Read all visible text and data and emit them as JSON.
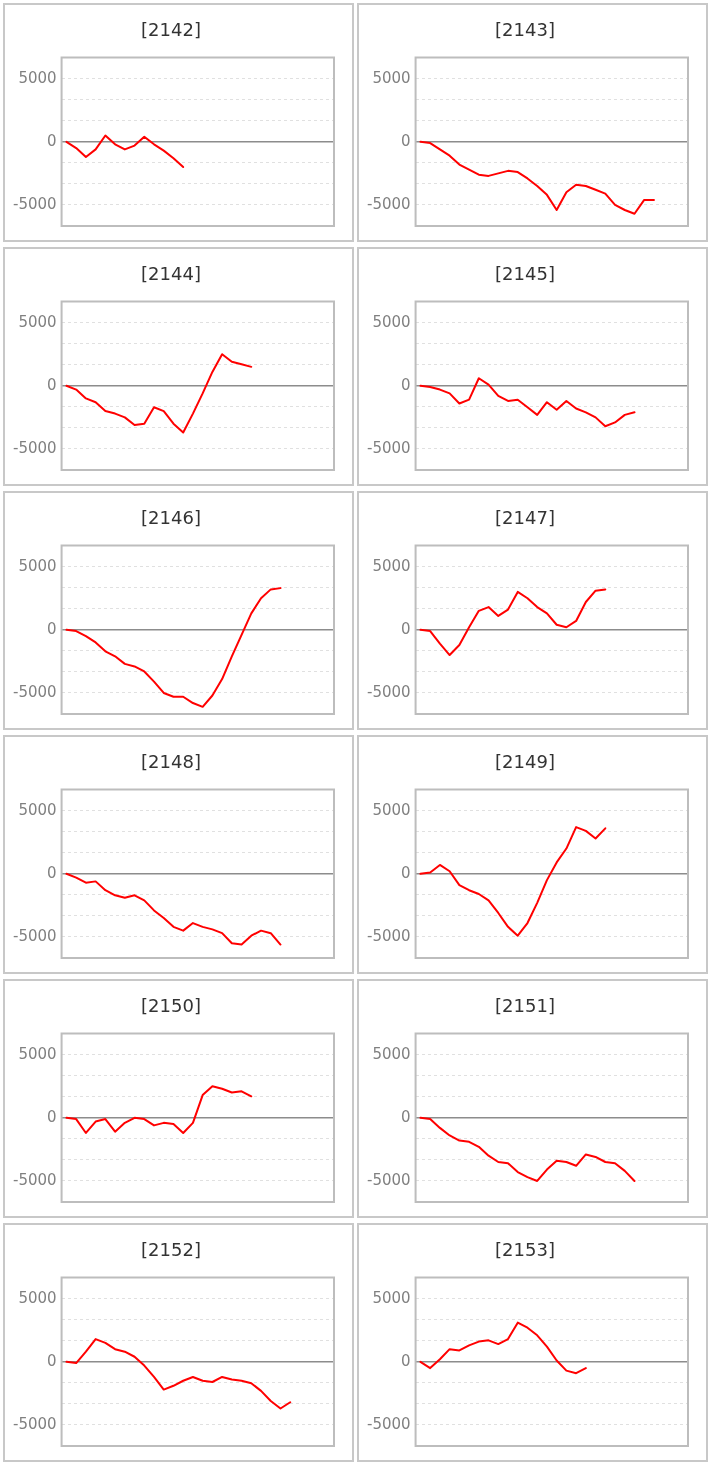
{
  "chart_data": [
    {
      "type": "line",
      "title": "[2142]",
      "categories": [
        null,
        null,
        null,
        null,
        null,
        null,
        null,
        null,
        null,
        null,
        null,
        null,
        null,
        null,
        null,
        null,
        null,
        null,
        null,
        null,
        null,
        null,
        null,
        null,
        null,
        null,
        null,
        null
      ],
      "values": [
        0,
        -500,
        -1200,
        -600,
        500,
        -200,
        -600,
        -300,
        400,
        -200,
        -700,
        -1300,
        -2000,
        null,
        null,
        null,
        null,
        null,
        null,
        null,
        null,
        null,
        null,
        null,
        null,
        null,
        null,
        null
      ],
      "color": "#ff0000",
      "ylim": [
        -6666.67,
        6666.67
      ],
      "yticks": [
        -5000,
        {
          "value": -3333.33,
          "label": null
        },
        {
          "value": -1666.67,
          "label": null
        },
        0,
        {
          "value": 1666.67,
          "label": null
        },
        {
          "value": 3333.33,
          "label": null
        },
        5000
      ],
      "grid": "y",
      "tick_labels": "y",
      "marker": "none",
      "line_style": "solid"
    },
    {
      "type": "line",
      "title": "[2143]",
      "categories": [
        null,
        null,
        null,
        null,
        null,
        null,
        null,
        null,
        null,
        null,
        null,
        null,
        null,
        null,
        null,
        null,
        null,
        null,
        null,
        null,
        null,
        null,
        null,
        null,
        null,
        null,
        null,
        null
      ],
      "values": [
        0,
        -100,
        -600,
        -1100,
        -1800,
        -2200,
        -2600,
        -2700,
        -2500,
        -2300,
        -2400,
        -2900,
        -3500,
        -4200,
        -5400,
        -4000,
        -3400,
        -3500,
        -3800,
        -4100,
        -5000,
        -5400,
        -5700,
        -4600,
        -4600,
        null,
        null,
        null
      ],
      "color": "#ff0000",
      "ylim": [
        -6666.67,
        6666.67
      ],
      "yticks": [
        -5000,
        {
          "value": -3333.33,
          "label": null
        },
        {
          "value": -1666.67,
          "label": null
        },
        0,
        {
          "value": 1666.67,
          "label": null
        },
        {
          "value": 3333.33,
          "label": null
        },
        5000
      ],
      "grid": "y",
      "tick_labels": "y",
      "marker": "none",
      "line_style": "solid"
    },
    {
      "type": "line",
      "title": "[2144]",
      "categories": [
        null,
        null,
        null,
        null,
        null,
        null,
        null,
        null,
        null,
        null,
        null,
        null,
        null,
        null,
        null,
        null,
        null,
        null,
        null,
        null,
        null,
        null,
        null,
        null,
        null,
        null,
        null,
        null
      ],
      "values": [
        0,
        -300,
        -1000,
        -1300,
        -2000,
        -2200,
        -2500,
        -3100,
        -3000,
        -1700,
        -2000,
        -3000,
        -3700,
        -2200,
        -600,
        1100,
        2500,
        1900,
        1700,
        1500,
        null,
        null,
        null,
        null,
        null,
        null,
        null,
        null
      ],
      "color": "#ff0000",
      "ylim": [
        -6666.67,
        6666.67
      ],
      "yticks": [
        -5000,
        {
          "value": -3333.33,
          "label": null
        },
        {
          "value": -1666.67,
          "label": null
        },
        0,
        {
          "value": 1666.67,
          "label": null
        },
        {
          "value": 3333.33,
          "label": null
        },
        5000
      ],
      "grid": "y",
      "tick_labels": "y",
      "marker": "none",
      "line_style": "solid"
    },
    {
      "type": "line",
      "title": "[2145]",
      "categories": [
        null,
        null,
        null,
        null,
        null,
        null,
        null,
        null,
        null,
        null,
        null,
        null,
        null,
        null,
        null,
        null,
        null,
        null,
        null,
        null,
        null,
        null,
        null,
        null,
        null,
        null,
        null,
        null
      ],
      "values": [
        0,
        -100,
        -300,
        -600,
        -1400,
        -1100,
        600,
        100,
        -800,
        -1200,
        -1100,
        -1700,
        -2300,
        -1300,
        -1900,
        -1200,
        -1800,
        -2100,
        -2500,
        -3200,
        -2900,
        -2300,
        -2100,
        null,
        null,
        null,
        null,
        null
      ],
      "color": "#ff0000",
      "ylim": [
        -6666.67,
        6666.67
      ],
      "yticks": [
        -5000,
        {
          "value": -3333.33,
          "label": null
        },
        {
          "value": -1666.67,
          "label": null
        },
        0,
        {
          "value": 1666.67,
          "label": null
        },
        {
          "value": 3333.33,
          "label": null
        },
        5000
      ],
      "grid": "y",
      "tick_labels": "y",
      "marker": "none",
      "line_style": "solid"
    },
    {
      "type": "line",
      "title": "[2146]",
      "categories": [
        null,
        null,
        null,
        null,
        null,
        null,
        null,
        null,
        null,
        null,
        null,
        null,
        null,
        null,
        null,
        null,
        null,
        null,
        null,
        null,
        null,
        null,
        null,
        null,
        null,
        null,
        null,
        null
      ],
      "values": [
        0,
        -100,
        -500,
        -1000,
        -1700,
        -2100,
        -2700,
        -2900,
        -3300,
        -4100,
        -5000,
        -5300,
        -5300,
        -5800,
        -6100,
        -5200,
        -3900,
        -2100,
        -400,
        1300,
        2500,
        3200,
        3300,
        null,
        null,
        null,
        null,
        null
      ],
      "color": "#ff0000",
      "ylim": [
        -6666.67,
        6666.67
      ],
      "yticks": [
        -5000,
        {
          "value": -3333.33,
          "label": null
        },
        {
          "value": -1666.67,
          "label": null
        },
        0,
        {
          "value": 1666.67,
          "label": null
        },
        {
          "value": 3333.33,
          "label": null
        },
        5000
      ],
      "grid": "y",
      "tick_labels": "y",
      "marker": "none",
      "line_style": "solid"
    },
    {
      "type": "line",
      "title": "[2147]",
      "categories": [
        null,
        null,
        null,
        null,
        null,
        null,
        null,
        null,
        null,
        null,
        null,
        null,
        null,
        null,
        null,
        null,
        null,
        null,
        null,
        null,
        null,
        null,
        null,
        null,
        null,
        null,
        null,
        null
      ],
      "values": [
        0,
        -100,
        -1100,
        -2000,
        -1200,
        200,
        1500,
        1800,
        1100,
        1600,
        3000,
        2500,
        1800,
        1300,
        400,
        200,
        700,
        2200,
        3100,
        3200,
        null,
        null,
        null,
        null,
        null,
        null,
        null,
        null
      ],
      "color": "#ff0000",
      "ylim": [
        -6666.67,
        6666.67
      ],
      "yticks": [
        -5000,
        {
          "value": -3333.33,
          "label": null
        },
        {
          "value": -1666.67,
          "label": null
        },
        0,
        {
          "value": 1666.67,
          "label": null
        },
        {
          "value": 3333.33,
          "label": null
        },
        5000
      ],
      "grid": "y",
      "tick_labels": "y",
      "marker": "none",
      "line_style": "solid"
    },
    {
      "type": "line",
      "title": "[2148]",
      "categories": [
        null,
        null,
        null,
        null,
        null,
        null,
        null,
        null,
        null,
        null,
        null,
        null,
        null,
        null,
        null,
        null,
        null,
        null,
        null,
        null,
        null,
        null,
        null,
        null,
        null,
        null,
        null,
        null
      ],
      "values": [
        0,
        -300,
        -700,
        -600,
        -1300,
        -1700,
        -1900,
        -1700,
        -2100,
        -2900,
        -3500,
        -4200,
        -4500,
        -3900,
        -4200,
        -4400,
        -4700,
        -5500,
        -5600,
        -4900,
        -4500,
        -4700,
        -5600,
        null,
        null,
        null,
        null,
        null
      ],
      "color": "#ff0000",
      "ylim": [
        -6666.67,
        6666.67
      ],
      "yticks": [
        -5000,
        {
          "value": -3333.33,
          "label": null
        },
        {
          "value": -1666.67,
          "label": null
        },
        0,
        {
          "value": 1666.67,
          "label": null
        },
        {
          "value": 3333.33,
          "label": null
        },
        5000
      ],
      "grid": "y",
      "tick_labels": "y",
      "marker": "none",
      "line_style": "solid"
    },
    {
      "type": "line",
      "title": "[2149]",
      "categories": [
        null,
        null,
        null,
        null,
        null,
        null,
        null,
        null,
        null,
        null,
        null,
        null,
        null,
        null,
        null,
        null,
        null,
        null,
        null,
        null,
        null,
        null,
        null,
        null,
        null,
        null,
        null,
        null
      ],
      "values": [
        0,
        100,
        700,
        200,
        -900,
        -1300,
        -1600,
        -2100,
        -3100,
        -4200,
        -4900,
        -3900,
        -2300,
        -500,
        900,
        2000,
        3700,
        3400,
        2800,
        3600,
        null,
        null,
        null,
        null,
        null,
        null,
        null,
        null
      ],
      "color": "#ff0000",
      "ylim": [
        -6666.67,
        6666.67
      ],
      "yticks": [
        -5000,
        {
          "value": -3333.33,
          "label": null
        },
        {
          "value": -1666.67,
          "label": null
        },
        0,
        {
          "value": 1666.67,
          "label": null
        },
        {
          "value": 3333.33,
          "label": null
        },
        5000
      ],
      "grid": "y",
      "tick_labels": "y",
      "marker": "none",
      "line_style": "solid"
    },
    {
      "type": "line",
      "title": "[2150]",
      "categories": [
        null,
        null,
        null,
        null,
        null,
        null,
        null,
        null,
        null,
        null,
        null,
        null,
        null,
        null,
        null,
        null,
        null,
        null,
        null,
        null,
        null,
        null,
        null,
        null,
        null,
        null,
        null,
        null
      ],
      "values": [
        0,
        -100,
        -1200,
        -300,
        -100,
        -1100,
        -400,
        0,
        -100,
        -600,
        -400,
        -500,
        -1200,
        -400,
        1800,
        2500,
        2300,
        2000,
        2100,
        1700,
        null,
        null,
        null,
        null,
        null,
        null,
        null,
        null
      ],
      "color": "#ff0000",
      "ylim": [
        -6666.67,
        6666.67
      ],
      "yticks": [
        -5000,
        {
          "value": -3333.33,
          "label": null
        },
        {
          "value": -1666.67,
          "label": null
        },
        0,
        {
          "value": 1666.67,
          "label": null
        },
        {
          "value": 3333.33,
          "label": null
        },
        5000
      ],
      "grid": "y",
      "tick_labels": "y",
      "marker": "none",
      "line_style": "solid"
    },
    {
      "type": "line",
      "title": "[2151]",
      "categories": [
        null,
        null,
        null,
        null,
        null,
        null,
        null,
        null,
        null,
        null,
        null,
        null,
        null,
        null,
        null,
        null,
        null,
        null,
        null,
        null,
        null,
        null,
        null,
        null,
        null,
        null,
        null,
        null
      ],
      "values": [
        0,
        -100,
        -800,
        -1400,
        -1800,
        -1900,
        -2300,
        -3000,
        -3500,
        -3600,
        -4300,
        -4700,
        -5000,
        -4100,
        -3400,
        -3500,
        -3800,
        -2900,
        -3100,
        -3500,
        -3600,
        -4200,
        -5000,
        null,
        null,
        null,
        null,
        null
      ],
      "color": "#ff0000",
      "ylim": [
        -6666.67,
        6666.67
      ],
      "yticks": [
        -5000,
        {
          "value": -3333.33,
          "label": null
        },
        {
          "value": -1666.67,
          "label": null
        },
        0,
        {
          "value": 1666.67,
          "label": null
        },
        {
          "value": 3333.33,
          "label": null
        },
        5000
      ],
      "grid": "y",
      "tick_labels": "y",
      "marker": "none",
      "line_style": "solid"
    },
    {
      "type": "line",
      "title": "[2152]",
      "categories": [
        null,
        null,
        null,
        null,
        null,
        null,
        null,
        null,
        null,
        null,
        null,
        null,
        null,
        null,
        null,
        null,
        null,
        null,
        null,
        null,
        null,
        null,
        null,
        null,
        null,
        null,
        null,
        null
      ],
      "values": [
        0,
        -100,
        800,
        1800,
        1500,
        1000,
        800,
        400,
        -300,
        -1200,
        -2200,
        -1900,
        -1500,
        -1200,
        -1500,
        -1600,
        -1200,
        -1400,
        -1500,
        -1700,
        -2300,
        -3100,
        -3700,
        -3200,
        null,
        null,
        null,
        null
      ],
      "color": "#ff0000",
      "ylim": [
        -6666.67,
        6666.67
      ],
      "yticks": [
        -5000,
        {
          "value": -3333.33,
          "label": null
        },
        {
          "value": -1666.67,
          "label": null
        },
        0,
        {
          "value": 1666.67,
          "label": null
        },
        {
          "value": 3333.33,
          "label": null
        },
        5000
      ],
      "grid": "y",
      "tick_labels": "y",
      "marker": "none",
      "line_style": "solid"
    },
    {
      "type": "line",
      "title": "[2153]",
      "categories": [
        null,
        null,
        null,
        null,
        null,
        null,
        null,
        null,
        null,
        null,
        null,
        null,
        null,
        null,
        null,
        null,
        null,
        null,
        null,
        null,
        null,
        null,
        null,
        null,
        null,
        null,
        null,
        null
      ],
      "values": [
        0,
        -500,
        200,
        1000,
        900,
        1300,
        1600,
        1700,
        1400,
        1800,
        3100,
        2700,
        2100,
        1200,
        100,
        -700,
        -900,
        -500,
        null,
        null,
        null,
        null,
        null,
        null,
        null,
        null,
        null,
        null
      ],
      "color": "#ff0000",
      "ylim": [
        -6666.67,
        6666.67
      ],
      "yticks": [
        -5000,
        {
          "value": -3333.33,
          "label": null
        },
        {
          "value": -1666.67,
          "label": null
        },
        0,
        {
          "value": 1666.67,
          "label": null
        },
        {
          "value": 3333.33,
          "label": null
        },
        5000
      ],
      "grid": "y",
      "tick_labels": "y",
      "marker": "none",
      "line_style": "solid"
    }
  ]
}
